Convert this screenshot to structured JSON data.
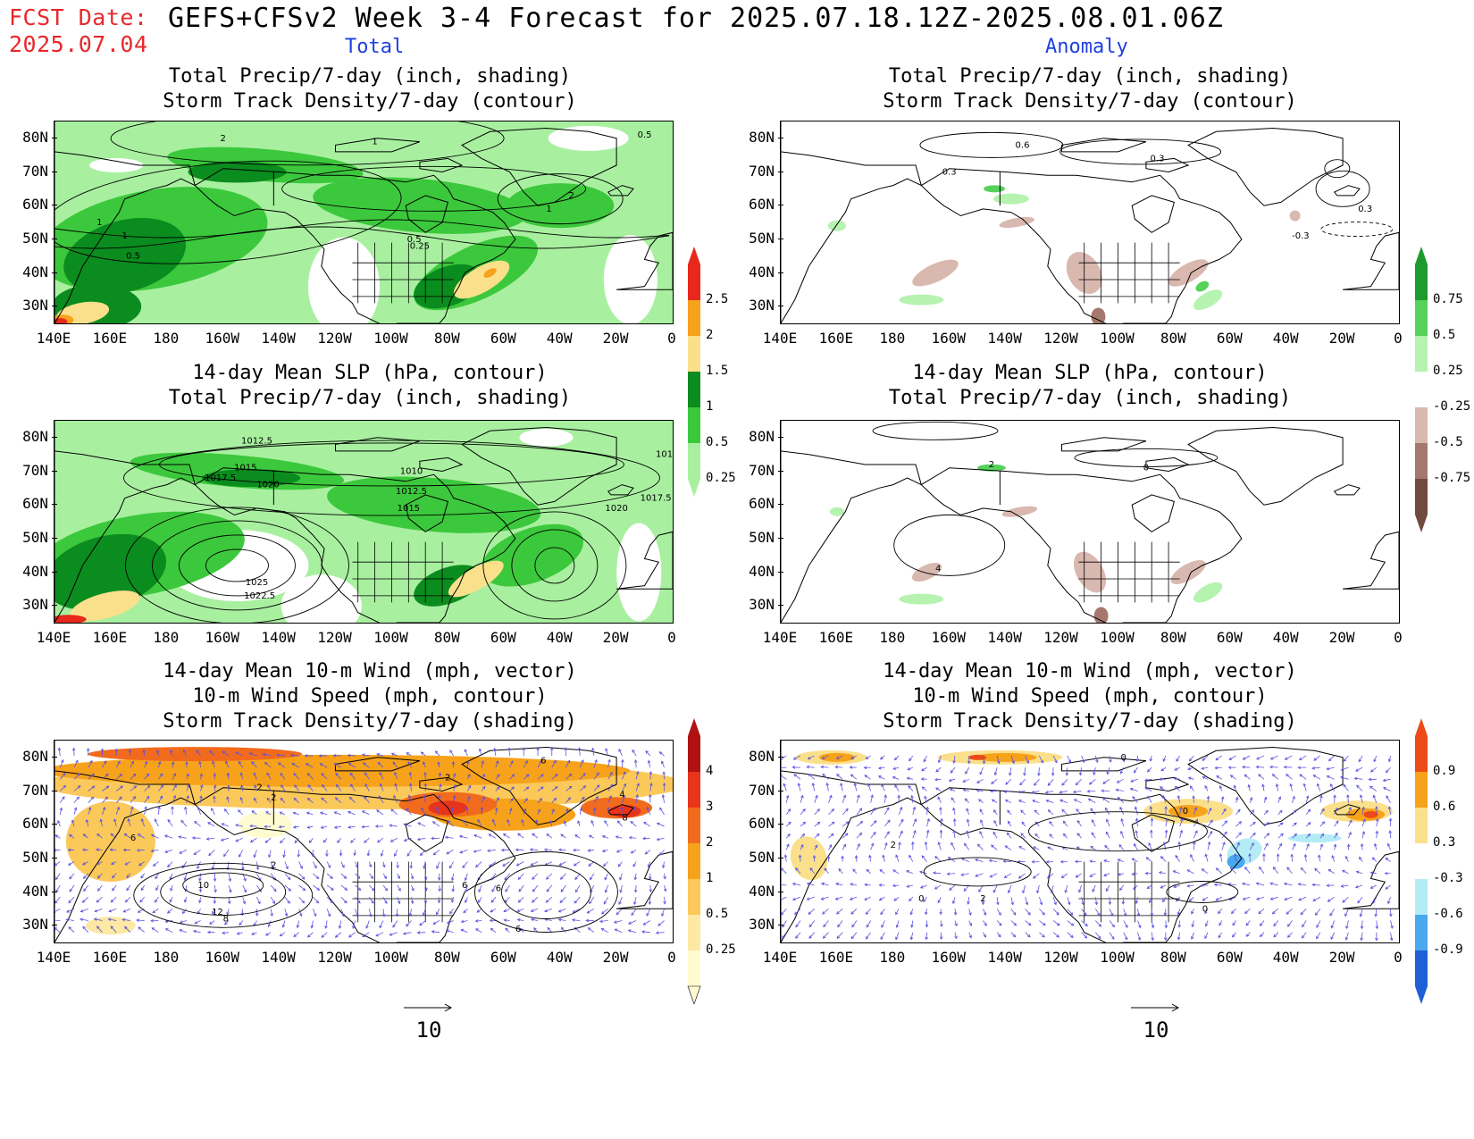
{
  "header": {
    "fcst_label": "FCST Date:",
    "fcst_date": "2025.07.04",
    "title": "GEFS+CFSv2 Week 3-4 Forecast for 2025.07.18.12Z-2025.08.01.06Z"
  },
  "columns": {
    "left": "Total",
    "right": "Anomaly"
  },
  "panels": {
    "total_precip": {
      "title1": "Total Precip/7-day (inch, shading)",
      "title2": "Storm Track Density/7-day (contour)"
    },
    "anom_precip": {
      "title1": "Total Precip/7-day (inch, shading)",
      "title2": "Storm Track Density/7-day (contour)"
    },
    "total_slp": {
      "title1": "14-day Mean SLP (hPa, contour)",
      "title2": "Total Precip/7-day (inch, shading)"
    },
    "anom_slp": {
      "title1": "14-day Mean SLP (hPa, contour)",
      "title2": "Total Precip/7-day (inch, shading)"
    },
    "total_wind": {
      "title1": "14-day Mean 10-m Wind (mph, vector)",
      "title2": "10-m Wind Speed (mph, contour)",
      "title3": "Storm Track Density/7-day (shading)"
    },
    "anom_wind": {
      "title1": "14-day Mean 10-m Wind (mph, vector)",
      "title2": "10-m Wind Speed (mph, contour)",
      "title3": "Storm Track Density/7-day (shading)"
    }
  },
  "axes": {
    "lat_labels": [
      "80N",
      "70N",
      "60N",
      "50N",
      "40N",
      "30N"
    ],
    "lon_labels": [
      "140E",
      "160E",
      "180",
      "160W",
      "140W",
      "120W",
      "100W",
      "80W",
      "60W",
      "40W",
      "20W",
      "0"
    ]
  },
  "colorbars": {
    "precip_total": {
      "labels": [
        "2.5",
        "2",
        "1.5",
        "1",
        "0.5",
        "0.25"
      ],
      "colors": [
        "#e8281a",
        "#f7a21b",
        "#fbe08c",
        "#0b8c1e",
        "#3cc83c",
        "#a8f0a0"
      ]
    },
    "precip_anom": {
      "labels": [
        "0.75",
        "0.5",
        "0.25",
        "-0.25",
        "-0.5",
        "-0.75"
      ],
      "colors": [
        "#1d9b2c",
        "#56d25a",
        "#b6f2b0",
        "#ffffff",
        "#d9b8b0",
        "#a5786d",
        "#6e4a3f"
      ]
    },
    "storm_total": {
      "labels": [
        "4",
        "3",
        "2",
        "1",
        "0.5",
        "0.25"
      ],
      "colors": [
        "#b01212",
        "#e8341a",
        "#f26b1d",
        "#f7a21b",
        "#fbc85a",
        "#fde8a4",
        "#fffbd0"
      ]
    },
    "storm_anom": {
      "labels": [
        "0.9",
        "0.6",
        "0.3",
        "-0.3",
        "-0.6",
        "-0.9"
      ],
      "colors": [
        "#ee4a17",
        "#f7a21b",
        "#fbe08c",
        "#ffffff",
        "#b4ecf6",
        "#4aa8ee",
        "#1f60d8"
      ]
    }
  },
  "contour_labels": {
    "total_precip": [
      "2",
      "1",
      "0.5",
      "2",
      "1",
      "1",
      "1",
      "0.5",
      "0.5",
      "0.25"
    ],
    "anom_precip": [
      "0.6",
      "0.3",
      "0.3",
      "-0.3",
      "0.3"
    ],
    "total_slp": [
      "1012.5",
      "1015",
      "1017.5",
      "1020",
      "1010",
      "1012.5",
      "1015",
      "1020",
      "1017.5",
      "1010",
      "1025",
      "1022.5"
    ],
    "anom_slp": [
      "2",
      "4",
      "0"
    ],
    "total_wind": [
      "2",
      "2",
      "2",
      "6",
      "6",
      "10",
      "12",
      "8",
      "2",
      "6",
      "4",
      "8",
      "6",
      "6"
    ],
    "anom_wind": [
      "2",
      "0",
      "2",
      "0",
      "0",
      "0"
    ]
  },
  "vector_key": {
    "label": "10"
  }
}
